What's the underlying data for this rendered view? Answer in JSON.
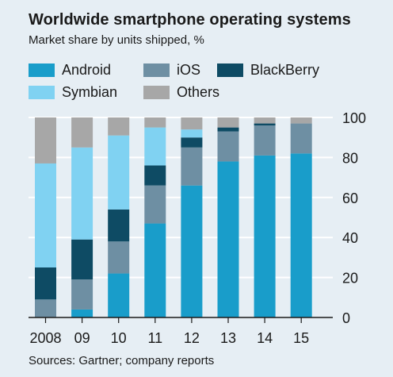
{
  "title": "Worldwide smartphone operating systems",
  "subtitle": "Market share by units shipped, %",
  "source": "Sources: Gartner; company reports",
  "colors": {
    "Android": "#199dca",
    "iOS": "#6e8fa3",
    "BlackBerry": "#0e4b64",
    "Symbian": "#80d2f2",
    "Others": "#a7a7a7",
    "panel": "#e6eef4",
    "grid": "#ffffff"
  },
  "legend": [
    {
      "label": "Android",
      "color": "#199dca"
    },
    {
      "label": "iOS",
      "color": "#6e8fa3"
    },
    {
      "label": "BlackBerry",
      "color": "#0e4b64"
    },
    {
      "label": "Symbian",
      "color": "#80d2f2"
    },
    {
      "label": "Others",
      "color": "#a7a7a7"
    }
  ],
  "chart_data": {
    "type": "bar",
    "stacked": true,
    "categories": [
      "2008",
      "09",
      "10",
      "11",
      "12",
      "13",
      "14",
      "15"
    ],
    "series": [
      {
        "name": "Android",
        "values": [
          0,
          4,
          22,
          47,
          66,
          78,
          81,
          82
        ]
      },
      {
        "name": "iOS",
        "values": [
          9,
          15,
          16,
          19,
          19,
          15,
          15,
          15
        ]
      },
      {
        "name": "BlackBerry",
        "values": [
          16,
          20,
          16,
          10,
          5,
          2,
          1,
          0
        ]
      },
      {
        "name": "Symbian",
        "values": [
          52,
          46,
          37,
          19,
          4,
          0,
          0,
          0
        ]
      },
      {
        "name": "Others",
        "values": [
          23,
          15,
          9,
          5,
          6,
          5,
          3,
          3
        ]
      }
    ],
    "yticks": [
      0,
      20,
      40,
      60,
      80,
      100
    ],
    "ylim": [
      0,
      100
    ],
    "grid": true,
    "y_axis_side": "right",
    "legend_position": "top"
  }
}
